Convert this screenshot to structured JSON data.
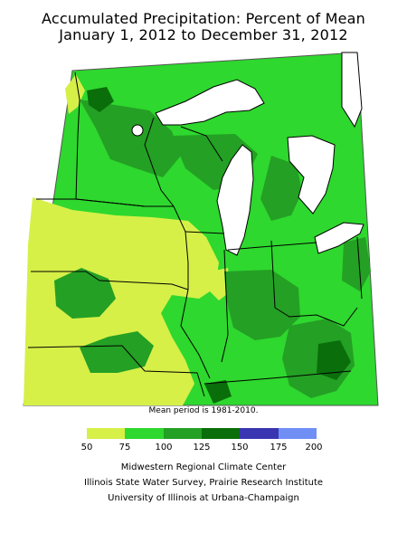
{
  "title_line1": "Accumulated Precipitation: Percent of Mean",
  "title_line2": "January 1, 2012 to December 31, 2012",
  "note": "Mean period is 1981-2010.",
  "legend": {
    "bins": [
      {
        "range": "50-75",
        "color": "#d6f048"
      },
      {
        "range": "75-100",
        "color": "#2ed82e"
      },
      {
        "range": "100-125",
        "color": "#24a024"
      },
      {
        "range": "125-150",
        "color": "#0a6e0a"
      },
      {
        "range": "150-175",
        "color": "#3a35b0"
      },
      {
        "range": "175-200",
        "color": "#6f8ff5"
      }
    ],
    "ticks": [
      "50",
      "75",
      "100",
      "125",
      "150",
      "175",
      "200"
    ]
  },
  "credits": [
    "Midwestern Regional Climate Center",
    "Illinois State Water Survey, Prairie Research Institute",
    "University of Illinois at Urbana-Champaign"
  ],
  "colors": {
    "lt75": "#d6f048",
    "c75_100": "#2ed82e",
    "c100_125": "#24a024",
    "c125_150": "#0a6e0a",
    "lake": "#ffffff",
    "border": "#000000"
  }
}
